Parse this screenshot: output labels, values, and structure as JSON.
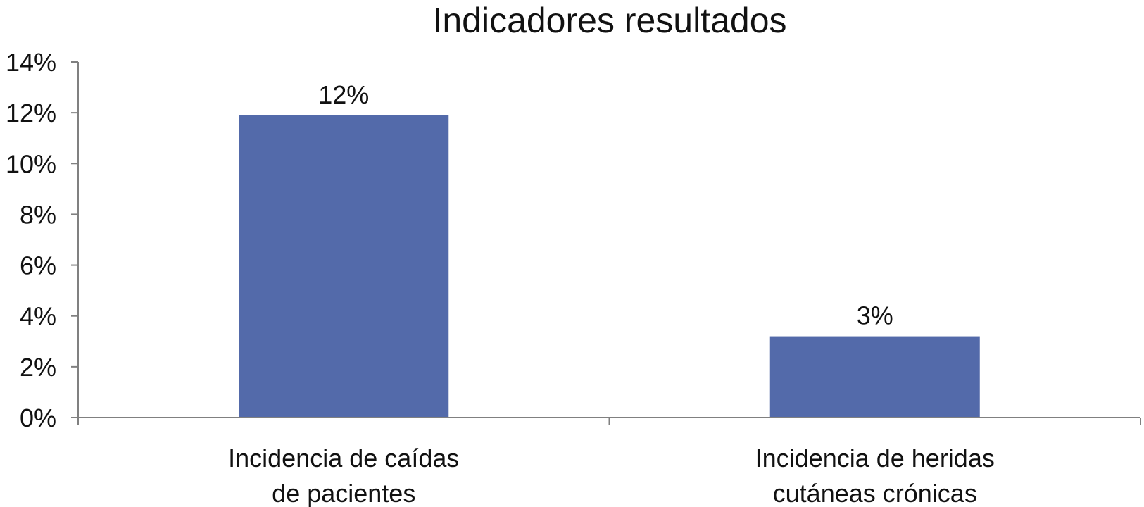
{
  "chart_data": {
    "type": "bar",
    "title": "Indicadores resultados",
    "categories": [
      [
        "Incidencia de caídas",
        "de pacientes"
      ],
      [
        "Incidencia de heridas",
        "cutáneas crónicas"
      ]
    ],
    "series": [
      {
        "values": [
          11.9,
          3.2
        ],
        "labels": [
          "12%",
          "3%"
        ]
      }
    ],
    "ylim": [
      0,
      14
    ],
    "yticks": [
      0,
      2,
      4,
      6,
      8,
      10,
      12,
      14
    ],
    "ytick_labels": [
      "0%",
      "2%",
      "4%",
      "6%",
      "8%",
      "10%",
      "12%",
      "14%"
    ],
    "xlabel": "",
    "ylabel": "",
    "grid": false,
    "legend": "none",
    "colors": {
      "bar": "#536aaa",
      "axis": "#808080",
      "text": "#111111"
    }
  }
}
